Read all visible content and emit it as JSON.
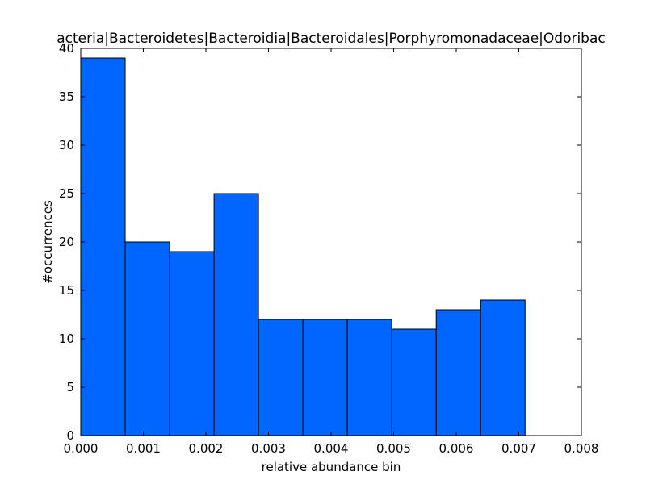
{
  "chart_data": {
    "type": "bar",
    "title": "acteria|Bacteroidetes|Bacteroidia|Bacteroidales|Porphyromonadaceae|Odoribac",
    "xlabel": "relative abundance bin",
    "ylabel": "#occurrences",
    "xlim": [
      0.0,
      0.008
    ],
    "ylim": [
      0,
      40
    ],
    "bin_edges": [
      0.0,
      0.00071,
      0.00142,
      0.00213,
      0.00284,
      0.00355,
      0.00426,
      0.00497,
      0.00568,
      0.00639,
      0.0071
    ],
    "values": [
      39,
      20,
      19,
      25,
      12,
      12,
      12,
      11,
      13,
      14
    ],
    "xticks": [
      "0.000",
      "0.001",
      "0.002",
      "0.003",
      "0.004",
      "0.005",
      "0.006",
      "0.007",
      "0.008"
    ],
    "yticks": [
      "0",
      "5",
      "10",
      "15",
      "20",
      "25",
      "30",
      "35",
      "40"
    ],
    "bar_color": "#0066ff",
    "grid": false,
    "legend": "none"
  }
}
